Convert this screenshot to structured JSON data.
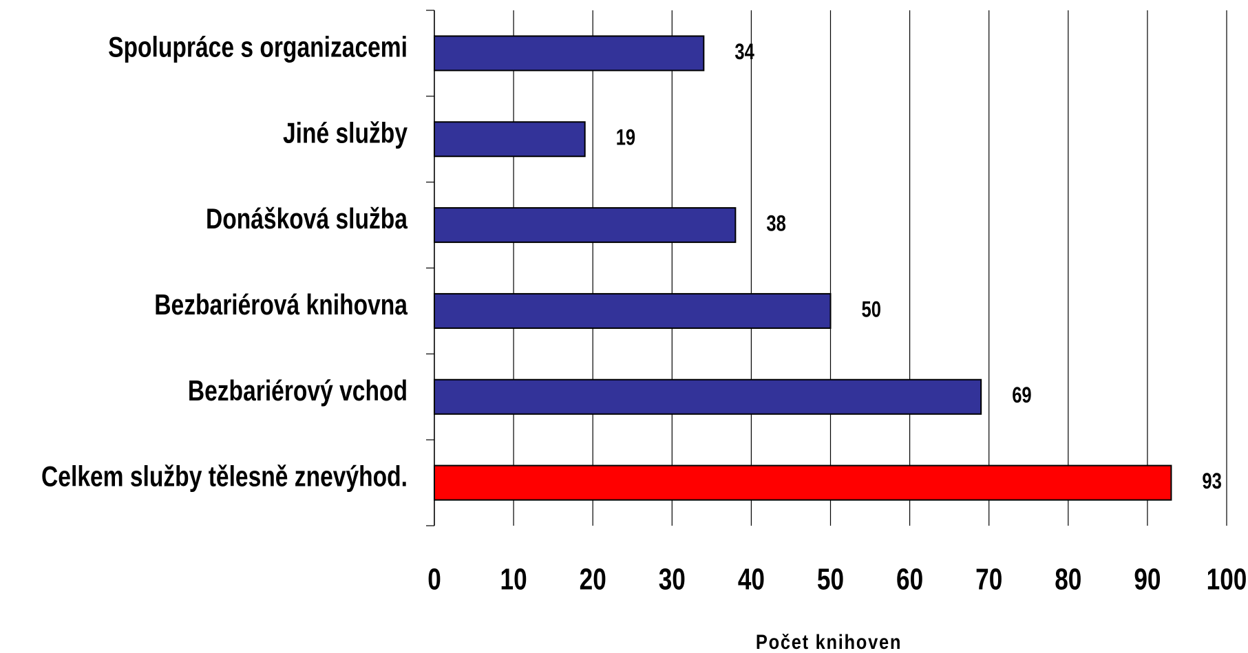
{
  "chart_data": {
    "type": "bar",
    "orientation": "horizontal",
    "categories": [
      "Spolupráce s organizacemi",
      "Jiné služby",
      "Donášková služba",
      "Bezbariérová knihovna",
      "Bezbariérový vchod",
      "Celkem služby tělesně znevýhod."
    ],
    "values": [
      34,
      19,
      38,
      50,
      69,
      93
    ],
    "colors": [
      "#333399",
      "#333399",
      "#333399",
      "#333399",
      "#333399",
      "#ff0000"
    ],
    "x_label": "Počet knihoven",
    "xlim": [
      0,
      100
    ],
    "xticks": [
      0,
      10,
      20,
      30,
      40,
      50,
      60,
      70,
      80,
      90,
      100
    ],
    "grid": true
  }
}
